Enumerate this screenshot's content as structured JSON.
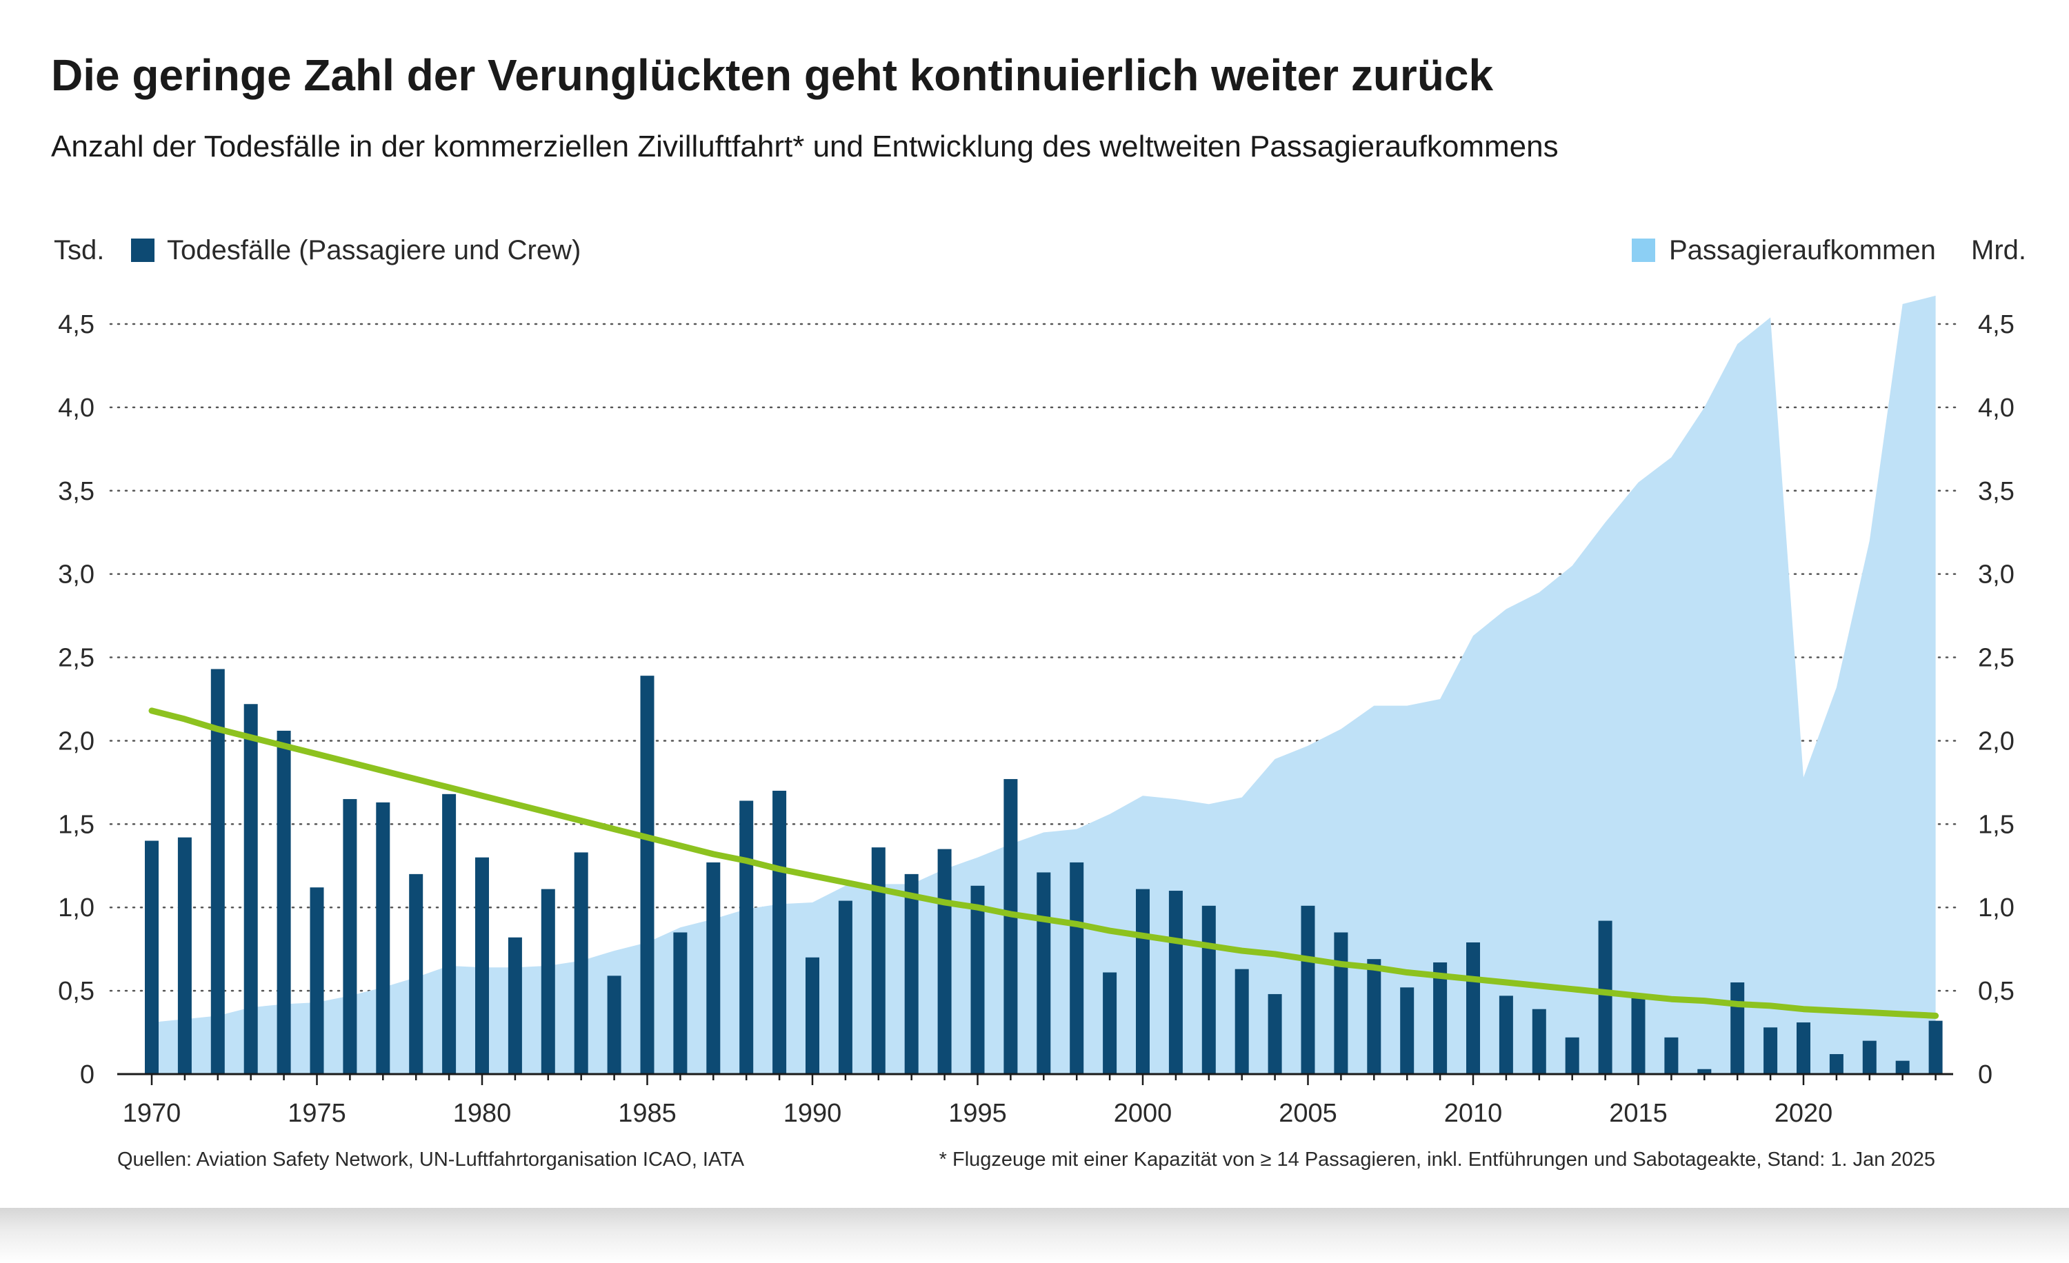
{
  "title": "Die geringe Zahl der Verunglückten geht kontinuierlich weiter zurück",
  "subtitle": "Anzahl der Todesfälle in der kommerziellen Zivilluftfahrt* und Entwicklung des weltweiten Passagieraufkommens",
  "source": "Quellen: Aviation Safety Network, UN-Luftfahrtorganisation ICAO, IATA",
  "footnote": "* Flugzeuge mit einer Kapazität von ≥ 14 Passagieren, inkl. Entführungen und Sabotageakte, Stand: 1. Jan 2025",
  "chart_data": {
    "type": "bar",
    "x": [
      1970,
      1971,
      1972,
      1973,
      1974,
      1975,
      1976,
      1977,
      1978,
      1979,
      1980,
      1981,
      1982,
      1983,
      1984,
      1985,
      1986,
      1987,
      1988,
      1989,
      1990,
      1991,
      1992,
      1993,
      1994,
      1995,
      1996,
      1997,
      1998,
      1999,
      2000,
      2001,
      2002,
      2003,
      2004,
      2005,
      2006,
      2007,
      2008,
      2009,
      2010,
      2011,
      2012,
      2013,
      2014,
      2015,
      2016,
      2017,
      2018,
      2019,
      2020,
      2021,
      2022,
      2023,
      2024
    ],
    "x_ticks": [
      "1970",
      "1975",
      "1980",
      "1985",
      "1990",
      "1995",
      "2000",
      "2005",
      "2010",
      "2015",
      "2020"
    ],
    "x_tick_values": [
      1970,
      1975,
      1980,
      1985,
      1990,
      1995,
      2000,
      2005,
      2010,
      2015,
      2020
    ],
    "y_left_unit": "Tsd.",
    "y_right_unit": "Mrd.",
    "y_ticks": [
      "0",
      "0,5",
      "1,0",
      "1,5",
      "2,0",
      "2,5",
      "3,0",
      "3,5",
      "4,0",
      "4,5"
    ],
    "y_tick_values": [
      0,
      0.5,
      1.0,
      1.5,
      2.0,
      2.5,
      3.0,
      3.5,
      4.0,
      4.5
    ],
    "ylim": [
      0,
      4.5
    ],
    "grid": true,
    "series": [
      {
        "name": "Todesfälle (Passagiere und Crew)",
        "type": "bar",
        "color": "#0d4a73",
        "axis": "left",
        "values": [
          1.4,
          1.42,
          2.43,
          2.22,
          2.06,
          1.12,
          1.65,
          1.63,
          1.2,
          1.68,
          1.3,
          0.82,
          1.11,
          1.33,
          0.59,
          2.39,
          0.85,
          1.27,
          1.64,
          1.7,
          0.7,
          1.04,
          1.36,
          1.2,
          1.35,
          1.13,
          1.77,
          1.21,
          1.27,
          0.61,
          1.11,
          1.1,
          1.01,
          0.63,
          0.48,
          1.01,
          0.85,
          0.69,
          0.52,
          0.67,
          0.79,
          0.47,
          0.39,
          0.22,
          0.92,
          0.47,
          0.22,
          0.03,
          0.55,
          0.28,
          0.31,
          0.12,
          0.2,
          0.08,
          0.32
        ]
      },
      {
        "name": "Passagieraufkommen",
        "type": "area",
        "color": "#bfe1f7",
        "axis": "right",
        "values": [
          0.31,
          0.33,
          0.35,
          0.4,
          0.42,
          0.43,
          0.47,
          0.52,
          0.58,
          0.65,
          0.64,
          0.64,
          0.65,
          0.68,
          0.74,
          0.79,
          0.88,
          0.93,
          0.99,
          1.02,
          1.03,
          1.13,
          1.14,
          1.14,
          1.23,
          1.3,
          1.38,
          1.45,
          1.47,
          1.56,
          1.67,
          1.65,
          1.62,
          1.66,
          1.89,
          1.97,
          2.07,
          2.21,
          2.21,
          2.25,
          2.63,
          2.79,
          2.89,
          3.05,
          3.31,
          3.55,
          3.7,
          4.0,
          4.38,
          4.54,
          1.78,
          2.32,
          3.2,
          4.62,
          4.67
        ]
      },
      {
        "type": "line",
        "color": "#8dc21f",
        "axis": "left",
        "values": [
          2.18,
          2.13,
          2.07,
          2.02,
          1.97,
          1.92,
          1.87,
          1.82,
          1.77,
          1.72,
          1.67,
          1.62,
          1.57,
          1.52,
          1.47,
          1.42,
          1.37,
          1.32,
          1.28,
          1.23,
          1.19,
          1.15,
          1.11,
          1.07,
          1.03,
          1.0,
          0.96,
          0.93,
          0.9,
          0.86,
          0.83,
          0.8,
          0.77,
          0.74,
          0.72,
          0.69,
          0.66,
          0.64,
          0.61,
          0.59,
          0.57,
          0.55,
          0.53,
          0.51,
          0.49,
          0.47,
          0.45,
          0.44,
          0.42,
          0.41,
          0.39,
          0.38,
          0.37,
          0.36,
          0.35
        ]
      }
    ],
    "legend": "top"
  }
}
